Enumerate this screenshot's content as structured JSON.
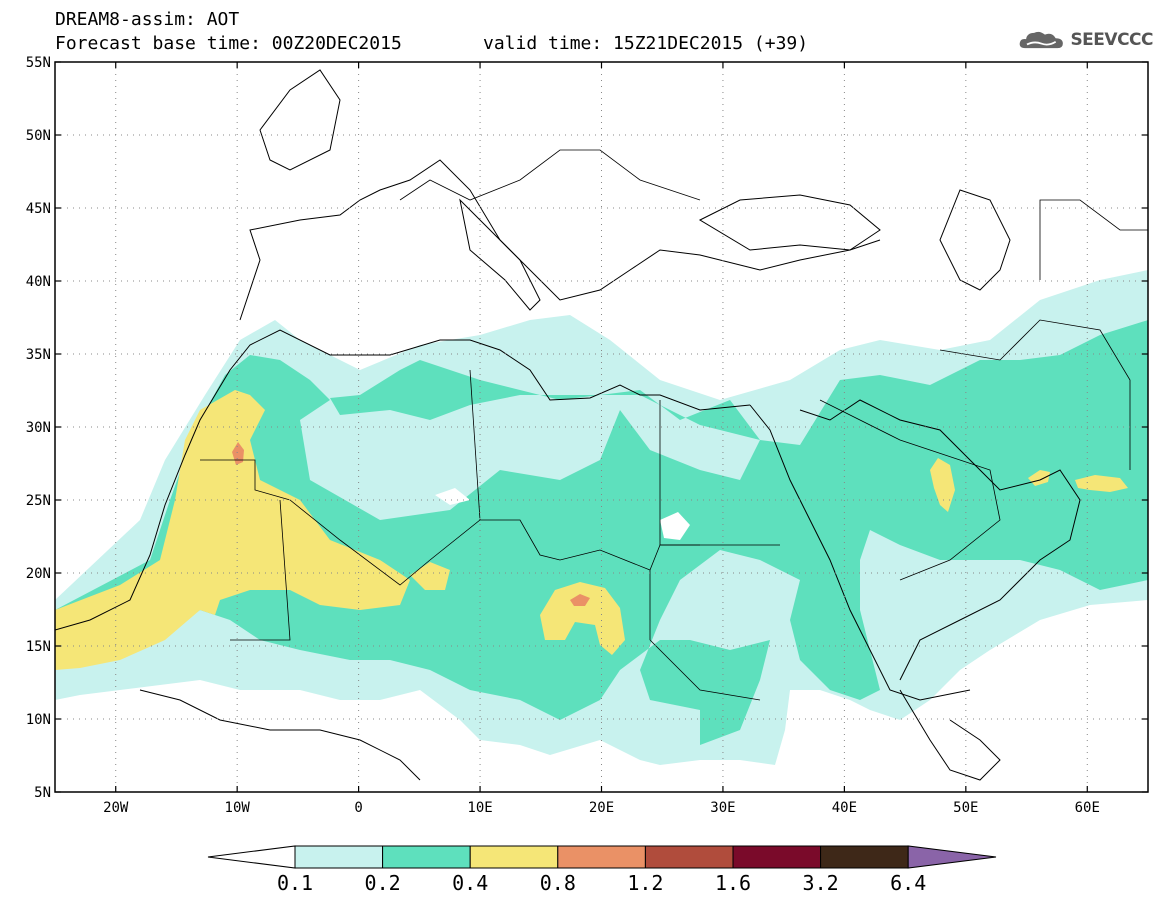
{
  "header": {
    "title_line1": "DREAM8-assim: AOT",
    "title_line2": "Forecast base time: 00Z20DEC2015",
    "valid_time": "valid time: 15Z21DEC2015 (+39)",
    "logo_text": "SEEVCCC",
    "logo_icon": "cloud-logo-icon"
  },
  "map": {
    "lat_labels": [
      "55N",
      "50N",
      "45N",
      "40N",
      "35N",
      "30N",
      "25N",
      "20N",
      "15N",
      "10N",
      "5N"
    ],
    "lon_labels": [
      "20W",
      "10W",
      "0",
      "10E",
      "20E",
      "30E",
      "40E",
      "50E",
      "60E"
    ],
    "lon_range": [
      -25,
      65
    ],
    "lat_range": [
      5,
      55
    ],
    "grid": "dotted"
  },
  "legend": {
    "labels": [
      "0.1",
      "0.2",
      "0.4",
      "0.8",
      "1.2",
      "1.6",
      "3.2",
      "6.4"
    ],
    "colors": [
      "#ffffff",
      "#c8f2ee",
      "#5ee0bd",
      "#f5e677",
      "#ea9166",
      "#b04c3c",
      "#7a0a2a",
      "#3e2818",
      "#8a64a8"
    ]
  }
}
